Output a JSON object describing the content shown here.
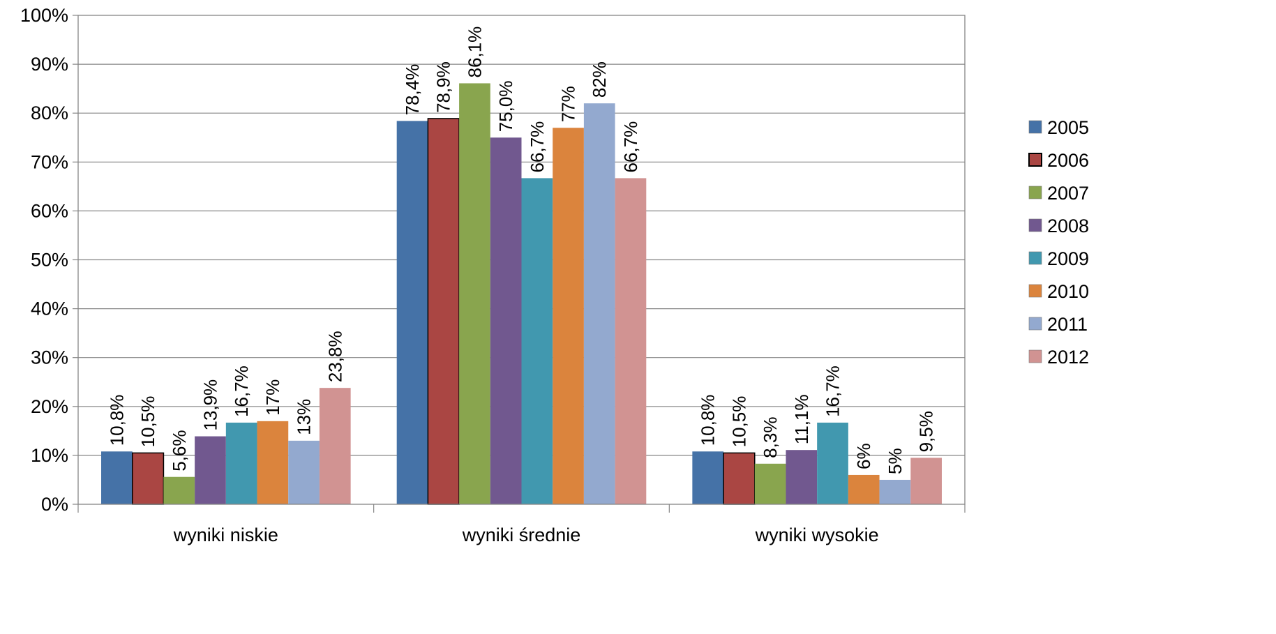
{
  "chart_data": {
    "type": "bar",
    "title": "",
    "xlabel": "",
    "ylabel": "",
    "ylim": [
      0,
      100
    ],
    "y_ticks": [
      "0%",
      "10%",
      "20%",
      "30%",
      "40%",
      "50%",
      "60%",
      "70%",
      "80%",
      "90%",
      "100%"
    ],
    "grid": true,
    "legend_position": "right",
    "categories": [
      "wyniki niskie",
      "wyniki średnie",
      "wyniki wysokie"
    ],
    "series": [
      {
        "name": "2005",
        "color": "#4572A7",
        "values": [
          10.8,
          78.4,
          10.8
        ],
        "labels": [
          "10,8%",
          "78,4%",
          "10,8%"
        ]
      },
      {
        "name": "2006",
        "color": "#AA4643",
        "values": [
          10.5,
          78.9,
          10.5
        ],
        "labels": [
          "10,5%",
          "78,9%",
          "10,5%"
        ]
      },
      {
        "name": "2007",
        "color": "#89A54E",
        "values": [
          5.6,
          86.1,
          8.3
        ],
        "labels": [
          "5,6%",
          "86,1%",
          "8,3%"
        ]
      },
      {
        "name": "2008",
        "color": "#71588F",
        "values": [
          13.9,
          75.0,
          11.1
        ],
        "labels": [
          "13,9%",
          "75,0%",
          "11,1%"
        ]
      },
      {
        "name": "2009",
        "color": "#4198AF",
        "values": [
          16.7,
          66.7,
          16.7
        ],
        "labels": [
          "16,7%",
          "66,7%",
          "16,7%"
        ]
      },
      {
        "name": "2010",
        "color": "#DB843D",
        "values": [
          17,
          77,
          6
        ],
        "labels": [
          "17%",
          "77%",
          "6%"
        ]
      },
      {
        "name": "2011",
        "color": "#93A9CF",
        "values": [
          13,
          82,
          5
        ],
        "labels": [
          "13%",
          "82%",
          "5%"
        ]
      },
      {
        "name": "2012",
        "color": "#D19392",
        "values": [
          23.8,
          66.7,
          9.5
        ],
        "labels": [
          "23,8%",
          "66,7%",
          "9,5%"
        ]
      }
    ]
  }
}
